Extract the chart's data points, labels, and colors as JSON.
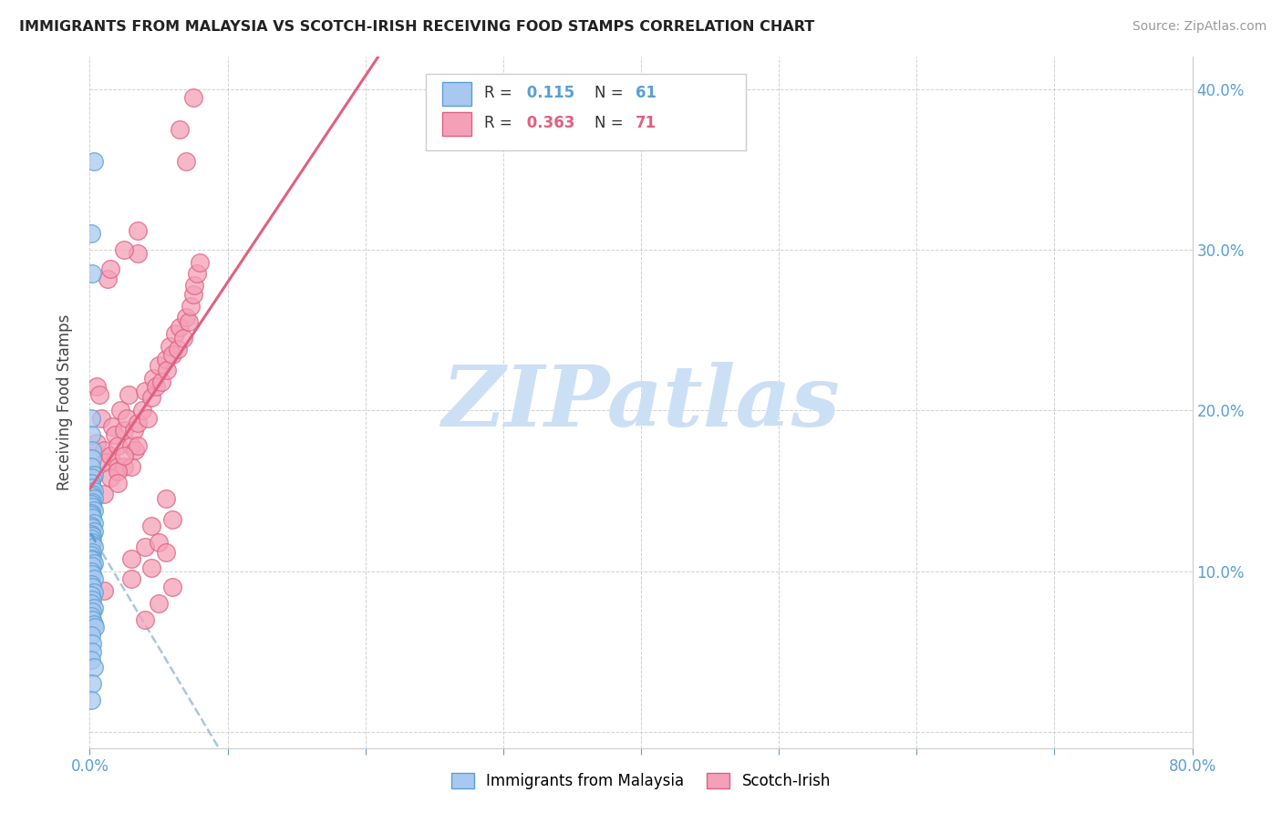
{
  "title": "IMMIGRANTS FROM MALAYSIA VS SCOTCH-IRISH RECEIVING FOOD STAMPS CORRELATION CHART",
  "source": "Source: ZipAtlas.com",
  "ylabel": "Receiving Food Stamps",
  "legend_label_1": "Immigrants from Malaysia",
  "legend_label_2": "Scotch-Irish",
  "R1": 0.115,
  "N1": 61,
  "R2": 0.363,
  "N2": 71,
  "color1": "#a8c8f0",
  "color2": "#f4a0b8",
  "line_color1": "#5a9fd4",
  "line_color2": "#e06080",
  "dashed_color": "#a0c0e0",
  "xlim": [
    0.0,
    0.8
  ],
  "ylim": [
    -0.01,
    0.42
  ],
  "xtick_positions": [
    0.0,
    0.1,
    0.2,
    0.3,
    0.4,
    0.5,
    0.6,
    0.7,
    0.8
  ],
  "xtick_labels_show": [
    "0.0%",
    "",
    "",
    "",
    "",
    "",
    "",
    "",
    "80.0%"
  ],
  "ytick_positions": [
    0.0,
    0.1,
    0.2,
    0.3,
    0.4
  ],
  "ytick_labels": [
    "",
    "10.0%",
    "20.0%",
    "30.0%",
    "40.0%"
  ],
  "background_color": "#ffffff",
  "watermark": "ZIPatlas",
  "watermark_color": "#cce0f5",
  "malaysia_x": [
    0.003,
    0.001,
    0.002,
    0.001,
    0.001,
    0.002,
    0.002,
    0.001,
    0.003,
    0.002,
    0.001,
    0.002,
    0.003,
    0.002,
    0.001,
    0.003,
    0.002,
    0.001,
    0.002,
    0.003,
    0.001,
    0.001,
    0.002,
    0.003,
    0.001,
    0.002,
    0.003,
    0.001,
    0.002,
    0.001,
    0.002,
    0.001,
    0.003,
    0.002,
    0.001,
    0.002,
    0.001,
    0.003,
    0.002,
    0.001,
    0.002,
    0.003,
    0.001,
    0.002,
    0.003,
    0.001,
    0.002,
    0.001,
    0.003,
    0.002,
    0.001,
    0.002,
    0.003,
    0.004,
    0.001,
    0.002,
    0.002,
    0.001,
    0.003,
    0.002,
    0.001
  ],
  "malaysia_y": [
    0.355,
    0.31,
    0.285,
    0.195,
    0.185,
    0.175,
    0.17,
    0.165,
    0.16,
    0.158,
    0.155,
    0.152,
    0.15,
    0.148,
    0.147,
    0.145,
    0.143,
    0.142,
    0.14,
    0.138,
    0.136,
    0.135,
    0.133,
    0.13,
    0.128,
    0.127,
    0.125,
    0.123,
    0.122,
    0.12,
    0.118,
    0.117,
    0.115,
    0.112,
    0.11,
    0.108,
    0.107,
    0.105,
    0.103,
    0.1,
    0.098,
    0.095,
    0.092,
    0.09,
    0.087,
    0.085,
    0.082,
    0.08,
    0.077,
    0.075,
    0.072,
    0.07,
    0.067,
    0.065,
    0.06,
    0.055,
    0.05,
    0.045,
    0.04,
    0.03,
    0.02
  ],
  "scotchirish_x": [
    0.005,
    0.005,
    0.007,
    0.008,
    0.01,
    0.012,
    0.013,
    0.015,
    0.016,
    0.018,
    0.02,
    0.02,
    0.022,
    0.025,
    0.025,
    0.027,
    0.028,
    0.03,
    0.03,
    0.032,
    0.033,
    0.035,
    0.035,
    0.038,
    0.04,
    0.042,
    0.045,
    0.046,
    0.048,
    0.05,
    0.052,
    0.055,
    0.056,
    0.058,
    0.06,
    0.062,
    0.064,
    0.065,
    0.068,
    0.07,
    0.072,
    0.073,
    0.075,
    0.076,
    0.078,
    0.08,
    0.01,
    0.015,
    0.02,
    0.025,
    0.03,
    0.035,
    0.04,
    0.045,
    0.05,
    0.055,
    0.06,
    0.04,
    0.06,
    0.05,
    0.065,
    0.07,
    0.075,
    0.015,
    0.025,
    0.035,
    0.02,
    0.055,
    0.03,
    0.045,
    0.01
  ],
  "scotchirish_y": [
    0.215,
    0.18,
    0.21,
    0.195,
    0.175,
    0.168,
    0.282,
    0.172,
    0.19,
    0.185,
    0.178,
    0.165,
    0.2,
    0.188,
    0.165,
    0.195,
    0.21,
    0.178,
    0.165,
    0.188,
    0.175,
    0.192,
    0.178,
    0.2,
    0.212,
    0.195,
    0.208,
    0.22,
    0.215,
    0.228,
    0.218,
    0.232,
    0.225,
    0.24,
    0.235,
    0.248,
    0.238,
    0.252,
    0.245,
    0.258,
    0.255,
    0.265,
    0.272,
    0.278,
    0.285,
    0.292,
    0.148,
    0.158,
    0.162,
    0.172,
    0.108,
    0.298,
    0.115,
    0.128,
    0.118,
    0.112,
    0.132,
    0.07,
    0.09,
    0.08,
    0.375,
    0.355,
    0.395,
    0.288,
    0.3,
    0.312,
    0.155,
    0.145,
    0.095,
    0.102,
    0.088
  ]
}
